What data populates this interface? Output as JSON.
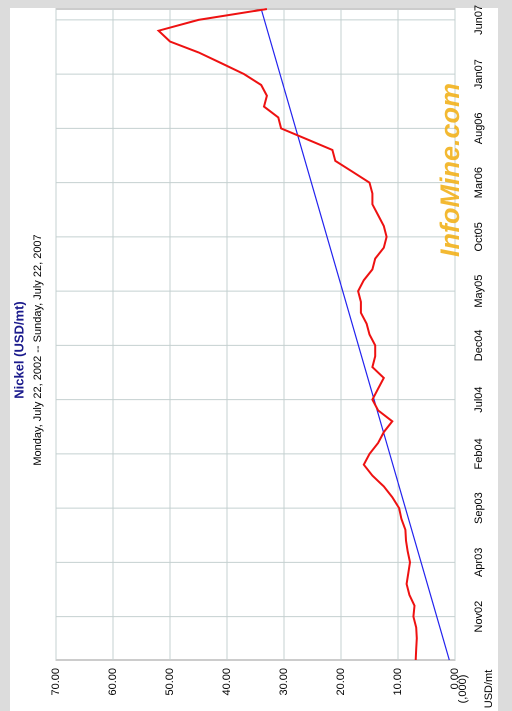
{
  "chart_data": {
    "type": "line",
    "title": "Nickel (USD/mt)",
    "subtitle": "Monday, July 22, 2002  --  Sunday, July 22, 2007",
    "y_label": [
      "(,000)",
      "USD/mt"
    ],
    "watermark": "InfoMine.com",
    "x": [
      null,
      null,
      null,
      null,
      "Nov02",
      null,
      null,
      null,
      null,
      "Apr03",
      null,
      null,
      null,
      null,
      "Sep03",
      null,
      null,
      null,
      null,
      "Feb04",
      null,
      null,
      null,
      null,
      "Jul04",
      null,
      null,
      null,
      null,
      "Dec04",
      null,
      null,
      null,
      null,
      "May05",
      null,
      null,
      null,
      null,
      "Oct05",
      null,
      null,
      null,
      null,
      "Mar06",
      null,
      null,
      null,
      null,
      "Aug06",
      null,
      null,
      null,
      null,
      "Jan07",
      null,
      null,
      null,
      null,
      "Jun07",
      null
    ],
    "series": [
      {
        "color": "#ee1111",
        "values": [
          6.9,
          6.8,
          6.7,
          6.8,
          7.3,
          7.1,
          8.0,
          8.5,
          8.2,
          7.9,
          8.3,
          8.6,
          8.7,
          9.4,
          9.8,
          11.0,
          12.5,
          14.5,
          16.0,
          15.0,
          13.5,
          12.5,
          11.0,
          13.5,
          14.5,
          13.5,
          12.5,
          14.5,
          14.0,
          14.0,
          15.0,
          15.5,
          16.5,
          16.5,
          17.0,
          16.0,
          14.5,
          14.0,
          12.5,
          12.0,
          12.5,
          13.5,
          14.5,
          14.5,
          15.0,
          18.0,
          21.0,
          21.5,
          26.0,
          30.5,
          31.0,
          33.5,
          33.0,
          34.0,
          37.0,
          41.0,
          45.0,
          50.0,
          52.0,
          45.0,
          33.0
        ]
      },
      {
        "color": "#2222ee",
        "values": [
          1,
          null,
          null,
          null,
          null,
          null,
          null,
          null,
          null,
          null,
          null,
          null,
          null,
          null,
          null,
          null,
          null,
          null,
          null,
          null,
          null,
          null,
          null,
          null,
          null,
          null,
          null,
          null,
          null,
          null,
          null,
          null,
          null,
          null,
          null,
          null,
          null,
          null,
          null,
          null,
          null,
          null,
          null,
          null,
          null,
          null,
          null,
          null,
          null,
          null,
          null,
          null,
          null,
          null,
          null,
          null,
          null,
          null,
          null,
          null,
          34
        ]
      }
    ],
    "ylim": [
      0,
      70
    ],
    "yticks": [
      {
        "value": 0,
        "label": "0.00"
      },
      {
        "value": 10,
        "label": "10.00"
      },
      {
        "value": 20,
        "label": "20.00"
      },
      {
        "value": 30,
        "label": "30.00"
      },
      {
        "value": 40,
        "label": "40.00"
      },
      {
        "value": 50,
        "label": "50.00"
      },
      {
        "value": 60,
        "label": "60.00"
      },
      {
        "value": 70,
        "label": "70.00"
      }
    ],
    "grid": true
  }
}
